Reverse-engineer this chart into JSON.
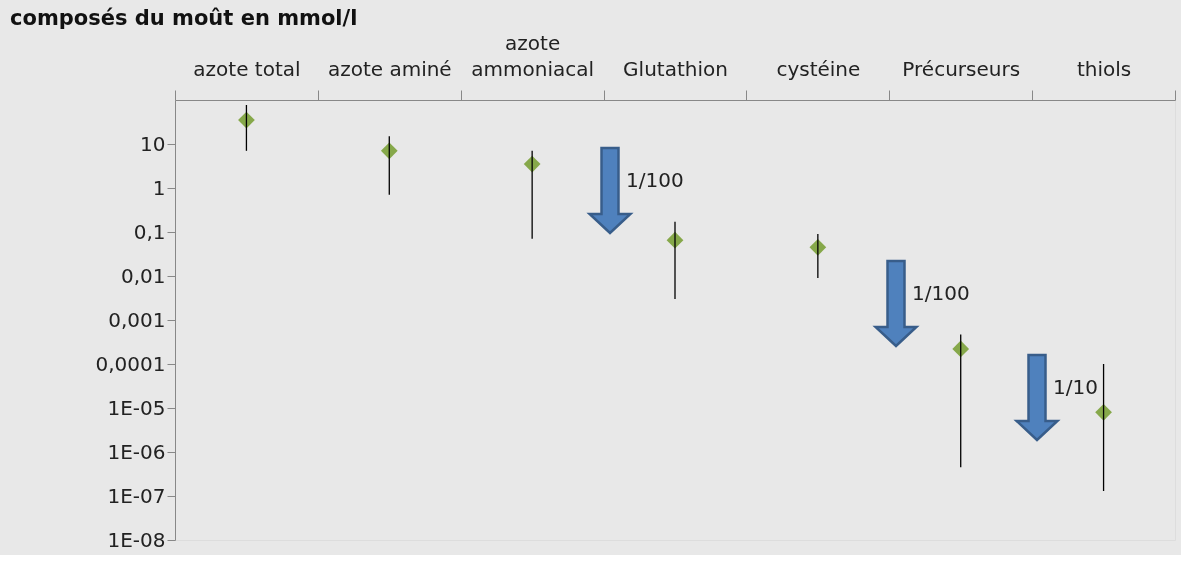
{
  "chart_data": {
    "type": "scatter",
    "title": "composés du moût en mmol/l",
    "categories": [
      "azote total",
      "azote aminé",
      "azote ammoniacal",
      "Glutathion",
      "cystéine",
      "Précurseurs",
      "thiols"
    ],
    "series": [
      {
        "color": "#86a84a",
        "values": [
          35,
          7,
          3.5,
          0.065,
          0.045,
          0.00022,
          8e-06
        ],
        "errors": [
          [
            7,
            77
          ],
          [
            0.7,
            15
          ],
          [
            0.07,
            7
          ],
          [
            0.003,
            0.17
          ],
          [
            0.009,
            0.09
          ],
          [
            4.5e-07,
            0.00047
          ],
          [
            1.3e-07,
            0.0001
          ]
        ]
      }
    ],
    "log": "y",
    "ylim": [
      1e-08,
      100
    ],
    "yticks": [
      {
        "value": 10,
        "label": "10"
      },
      {
        "value": 1,
        "label": "1"
      },
      {
        "value": 0.1,
        "label": "0,1"
      },
      {
        "value": 0.01,
        "label": "0,01"
      },
      {
        "value": 0.001,
        "label": "0,001"
      },
      {
        "value": 0.0001,
        "label": "0,0001"
      },
      {
        "value": 1e-05,
        "label": "1E-05"
      },
      {
        "value": 1e-06,
        "label": "1E-06"
      },
      {
        "value": 1e-07,
        "label": "1E-07"
      },
      {
        "value": 1e-08,
        "label": "1E-08"
      }
    ],
    "marker": "diamond",
    "grid": false,
    "annotations": [
      "1/100",
      "1/100",
      "1/10"
    ]
  }
}
